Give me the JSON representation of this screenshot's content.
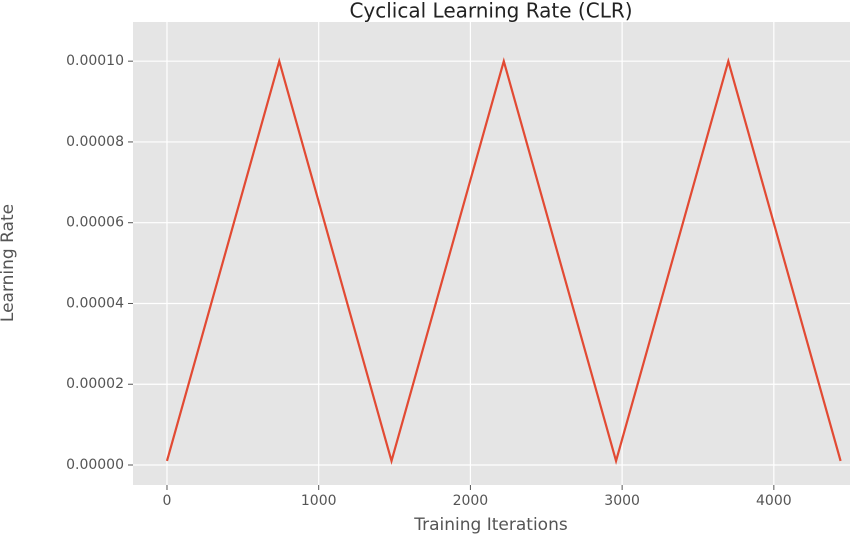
{
  "chart_data": {
    "type": "line",
    "title": "Cyclical Learning Rate (CLR)",
    "xlabel": "Training Iterations",
    "ylabel": "Learning Rate",
    "x": [
      0,
      740,
      1480,
      2220,
      2960,
      3700,
      4440
    ],
    "series": [
      {
        "name": "CLR",
        "color": "#E24A33",
        "values": [
          1e-06,
          0.0001,
          1e-06,
          0.0001,
          1e-06,
          0.0001,
          1e-06
        ]
      }
    ],
    "xlim": [
      -224,
      4502
    ],
    "ylim": [
      -4.95e-06,
      0.0001097
    ],
    "xticks": [
      0,
      1000,
      2000,
      3000,
      4000
    ],
    "yticks": [
      {
        "value": 0,
        "label": "0.00000"
      },
      {
        "value": 2e-05,
        "label": "0.00002"
      },
      {
        "value": 4e-05,
        "label": "0.00004"
      },
      {
        "value": 6e-05,
        "label": "0.00006"
      },
      {
        "value": 8e-05,
        "label": "0.00008"
      },
      {
        "value": 0.0001,
        "label": "0.00010"
      }
    ],
    "grid": true,
    "background": "#E5E5E5"
  }
}
